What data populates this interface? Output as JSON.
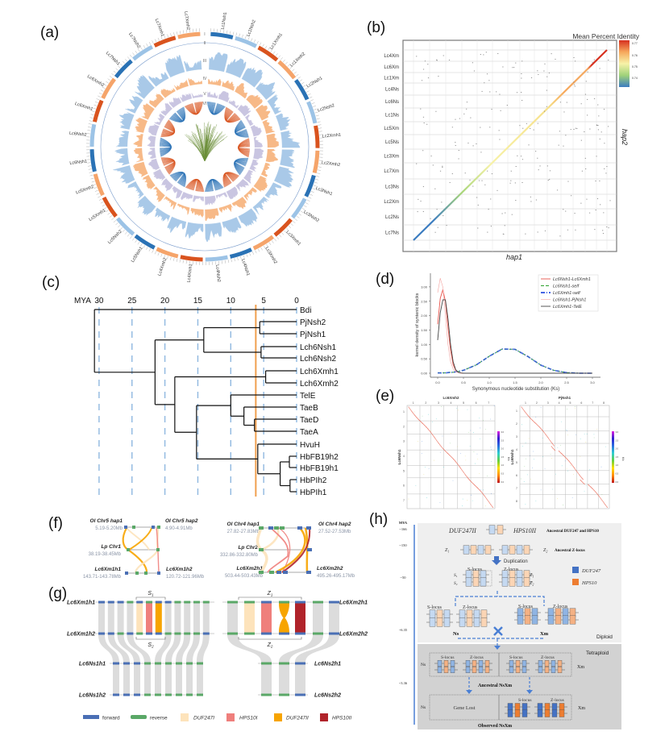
{
  "panel_labels": [
    "(a)",
    "(b)",
    "(c)",
    "(d)",
    "(e)",
    "(f)",
    "(g)",
    "(h)"
  ],
  "a": {
    "track_labels": [
      "I",
      "II",
      "III",
      "IV",
      "V",
      "VI"
    ],
    "chromosomes": [
      "Lc1Nsh1",
      "Lc1Nsh2",
      "Lc1Xmh1",
      "Lc1Xmh2",
      "Lc2Nsh1",
      "Lc2Nsh2",
      "Lc2Xmh1",
      "Lc2Xmh2",
      "Lc3Nsh1",
      "Lc3Nsh2",
      "Lc3Xmh1",
      "Lc3Xmh2",
      "Lc4Nsh1",
      "Lc4Nsh2",
      "Lc4Xmh1",
      "Lc4Xmh2",
      "Lc5Nsh1",
      "Lc5Nsh2",
      "Lc5Xmh1",
      "Lc5Xmh2",
      "Lc6Nsh1",
      "Lc6Nsh2",
      "Lc6Xmh1",
      "Lc6Xmh2",
      "Lc7Nsh1",
      "Lc7Nsh2",
      "Lc7Xmh1",
      "Lc7Xmh2"
    ],
    "colors": {
      "Nsh1": "#2a72b5",
      "Nsh2": "#9cc3e6",
      "Xmh1": "#d9531e",
      "Xmh2": "#f5a46a",
      "track3": "#a9c9e8",
      "track4": "#f7b987",
      "track5": "#c9c5e1",
      "center": "#6b8e3a"
    }
  },
  "b": {
    "legend_title": "Mean Percent Identity",
    "colorbar_ticks": [
      "0.77",
      "0.76",
      "0.75",
      "0.74"
    ],
    "xlabel": "hap1",
    "ylabel": "hap2",
    "rows": [
      "Lc4Xm",
      "Lc6Xm",
      "Lc1Xm",
      "Lc4Ns",
      "Lc6Ns",
      "Lc1Ns",
      "Lc5Xm",
      "Lc5Ns",
      "Lc3Xm",
      "Lc7Xm",
      "Lc3Ns",
      "Lc2Xm",
      "Lc2Ns",
      "Lc7Ns"
    ],
    "colors": [
      "#3b7cc0",
      "#9fd27a",
      "#f7f2a8",
      "#f6a85c",
      "#d7301f"
    ]
  },
  "c": {
    "axis_label": "MYA",
    "ticks": [
      30,
      25,
      20,
      15,
      10,
      5,
      0
    ],
    "cutoff_mya": 6.2,
    "cutoff_color": "#f0a050",
    "leaves": [
      "Bdi",
      "PjNsh2",
      "PjNsh1",
      "Lch6Nsh1",
      "Lch6Nsh2",
      "Lch6Xmh1",
      "Lch6Xmh2",
      "TelE",
      "TaeB",
      "TaeD",
      "TaeA",
      "HvuH",
      "HbFB19h2",
      "HbFB19h1",
      "HbPIh2",
      "HbPIh1"
    ],
    "tree": {
      "age": 30.7,
      "children": [
        {
          "leaf": "Bdi"
        },
        {
          "age": 21.5,
          "children": [
            {
              "age": 14.1,
              "children": [
                {
                  "age": 5.6,
                  "children": [
                    {
                      "leaf": "PjNsh2"
                    },
                    {
                      "leaf": "PjNsh1"
                    }
                  ]
                },
                {
                  "age": 5.4,
                  "children": [
                    {
                      "leaf": "Lch6Nsh1"
                    },
                    {
                      "leaf": "Lch6Nsh2"
                    }
                  ]
                }
              ]
            },
            {
              "age": 18.5,
              "children": [
                {
                  "age": 4.7,
                  "children": [
                    {
                      "leaf": "Lch6Xmh1"
                    },
                    {
                      "leaf": "Lch6Xmh2"
                    }
                  ]
                },
                {
                  "age": 15.2,
                  "children": [
                    {
                      "age": 10.0,
                      "children": [
                        {
                          "leaf": "TelE"
                        },
                        {
                          "age": 8.0,
                          "children": [
                            {
                              "leaf": "TaeB"
                            },
                            {
                              "age": 6.4,
                              "children": [
                                {
                                  "leaf": "TaeD"
                                },
                                {
                                  "leaf": "TaeA"
                                }
                              ]
                            }
                          ]
                        }
                      ]
                    },
                    {
                      "age": 5.9,
                      "children": [
                        {
                          "leaf": "HvuH"
                        },
                        {
                          "age": 2.5,
                          "children": [
                            {
                              "age": 1.1,
                              "children": [
                                {
                                  "leaf": "HbFB19h2"
                                },
                                {
                                  "leaf": "HbFB19h1"
                                }
                              ]
                            },
                            {
                              "age": 1.0,
                              "children": [
                                {
                                  "leaf": "HbPIh2"
                                },
                                {
                                  "leaf": "HbPIh1"
                                }
                              ]
                            }
                          ]
                        }
                      ]
                    }
                  ]
                }
              ]
            }
          ]
        }
      ]
    }
  },
  "chart_data": [
    {
      "type": "line",
      "xlabel": "Synonymous nucleotide substitution (Ks)",
      "ylabel": "kernel density of syntenic blocks",
      "xlim": [
        0,
        3.0
      ],
      "ylim": [
        0,
        3.3
      ],
      "xticks": [
        "0.0",
        "0.5",
        "1.0",
        "1.5",
        "2.0",
        "2.5",
        "3.0"
      ],
      "yticks": [
        "0.00",
        "0.50",
        "1.00",
        "1.50",
        "2.00",
        "2.50",
        "3.00"
      ],
      "legend_position": "top-right",
      "x": [
        0,
        0.05,
        0.1,
        0.15,
        0.2,
        0.25,
        0.3,
        0.35,
        0.4,
        0.45,
        0.5,
        0.75,
        1.0,
        1.25,
        1.5,
        1.75,
        2.0,
        2.25,
        2.5,
        2.75,
        3.0
      ],
      "series": [
        {
          "name": "Lc6Nsh1-Lc6Xmh1",
          "color": "#e8534a",
          "dash": "solid",
          "values": [
            1.7,
            2.6,
            2.9,
            2.5,
            1.6,
            0.8,
            0.3,
            0.1,
            0.03,
            0.01,
            0,
            0,
            0,
            0,
            0,
            0,
            0,
            0,
            0,
            0,
            0
          ]
        },
        {
          "name": "Lc6Nsh1-self",
          "color": "#2ca02c",
          "dash": "dashed",
          "values": [
            0.01,
            0.01,
            0.01,
            0.01,
            0.02,
            0.03,
            0.03,
            0.05,
            0.06,
            0.08,
            0.1,
            0.29,
            0.59,
            0.84,
            0.83,
            0.58,
            0.28,
            0.1,
            0.02,
            0.0,
            0.0
          ]
        },
        {
          "name": "Lc6Xmh1-self",
          "color": "#2b4fe0",
          "dash": "dashdot",
          "values": [
            0.01,
            0.01,
            0.01,
            0.01,
            0.02,
            0.03,
            0.03,
            0.05,
            0.06,
            0.08,
            0.1,
            0.29,
            0.59,
            0.84,
            0.83,
            0.58,
            0.28,
            0.1,
            0.02,
            0.0,
            0.0
          ]
        },
        {
          "name": "Lc6Nsh1-PjNsh1",
          "color": "#f4a3a0",
          "dash": "solid",
          "values": [
            2.8,
            3.3,
            3.0,
            2.0,
            1.0,
            0.4,
            0.15,
            0.05,
            0.02,
            0,
            0,
            0,
            0,
            0,
            0,
            0,
            0,
            0,
            0,
            0,
            0
          ]
        },
        {
          "name": "Lc6Xmh1-TelE",
          "color": "#444444",
          "dash": "solid",
          "values": [
            1.15,
            2.1,
            2.55,
            2.55,
            1.9,
            1.0,
            0.4,
            0.12,
            0.03,
            0.01,
            0,
            0,
            0,
            0,
            0,
            0,
            0,
            0,
            0,
            0,
            0
          ]
        }
      ]
    }
  ],
  "e": {
    "panels": [
      {
        "title": "Lc6Xmh2",
        "ylabel": "Lc6Nsh1",
        "xticks": [
          "1",
          "2",
          "3",
          "4",
          "5",
          "6",
          "7"
        ],
        "yticks": [
          "1",
          "2",
          "3",
          "4",
          "5",
          "6",
          "7"
        ]
      },
      {
        "title": "PjNsh1",
        "ylabel": "Lc6Nsh1",
        "xticks": [
          "1",
          "2",
          "3",
          "4",
          "5",
          "6",
          "7",
          "8"
        ],
        "yticks": [
          "1",
          "2",
          "3",
          "4",
          "5",
          "6",
          "7",
          "8"
        ]
      }
    ],
    "colorbar_label": "Ks",
    "colorbar_ticks": [
      "3.0",
      "2.5",
      "2.0",
      "1.5",
      "1.0",
      "0.5",
      "0.0"
    ]
  },
  "f": {
    "left": {
      "top_left": {
        "name": "Ol Chr5 hap1",
        "range": "5.19-5.20Mb"
      },
      "top_right": {
        "name": "Ol Chr5 hap2",
        "range": "4.90-4.91Mb"
      },
      "mid": {
        "name": "Lp Chr1",
        "range": "38.19-38.45Mb"
      },
      "bottom_left": {
        "name": "Lc6Xm1h1",
        "range": "143.71-143.78Mb"
      },
      "bottom_right": {
        "name": "Lc6Xm1h2",
        "range": "120.72-121.96Mb"
      }
    },
    "right": {
      "top_left": {
        "name": "Ol Chr4 hap1",
        "range": "27.82-27.83Mb"
      },
      "top_right": {
        "name": "Ol Chr4 hap2",
        "range": "27.52-27.53Mb"
      },
      "mid": {
        "name": "Lp Chr2",
        "range": "332.86-332.80Mb"
      },
      "bottom_left": {
        "name": "Lc6Xm2h1",
        "range": "503.44-503.43Mb"
      },
      "bottom_right": {
        "name": "Lc6Xm2h2",
        "range": "495.26-495.17Mb"
      }
    }
  },
  "g": {
    "left_rows": [
      "Lc6Xm1h1",
      "Lc6Xm1h2",
      "Lc6Ns1h1",
      "Lc6Ns1h2"
    ],
    "right_rows": [
      "Lc6Xm2h1",
      "Lc6Xm2h2",
      "Lc6Ns2h1",
      "Lc6Ns2h2"
    ],
    "brackets": {
      "s1": "S",
      "s1_sub": "1",
      "s2": "S",
      "s2_sub": "2",
      "z1": "Z",
      "z1_sub": "1",
      "z2": "Z",
      "z2_sub": "2"
    },
    "legend": [
      {
        "label": "forward",
        "color": "#4a6fb5"
      },
      {
        "label": "reverse",
        "color": "#5aa867"
      },
      {
        "label": "DUF247I",
        "color": "#fde3bb"
      },
      {
        "label": "HPS10I",
        "color": "#ef7f7c"
      },
      {
        "label": "DUF247II",
        "color": "#f7a400"
      },
      {
        "label": "HPS10II",
        "color": "#b0232a"
      }
    ]
  },
  "h": {
    "mya_label": "MYA",
    "mya_ticks": [
      "~166",
      "~150",
      "~50",
      "~6.35",
      "~3.36"
    ],
    "duf247ii": "DUF247II",
    "hps10ii": "HPS10II",
    "ancestral_genes": "Ancestral DUF247 and HPS10",
    "z1": "Z",
    "z2": "Z",
    "sub1": "1",
    "sub2": "2",
    "ancestral_z": "Ancestral Z-locus",
    "duplication": "Duplication",
    "s_locus": "S-locus",
    "z_locus": "Z-locus",
    "s": "S",
    "legend_duf": "DUF247",
    "legend_hps": "HPS10",
    "ns": "Ns",
    "xm": "Xm",
    "diploid": "Diploid",
    "tetraploid": "Tetraploid",
    "ancestral_nsxm": "Ancestral NsXm",
    "gene_lost": "Gene Lost",
    "observed_nsxm": "Observed NsXm",
    "colors": {
      "duf": "#4472c4",
      "hps": "#ed7d31",
      "timeline": "#4a7fd4"
    }
  }
}
